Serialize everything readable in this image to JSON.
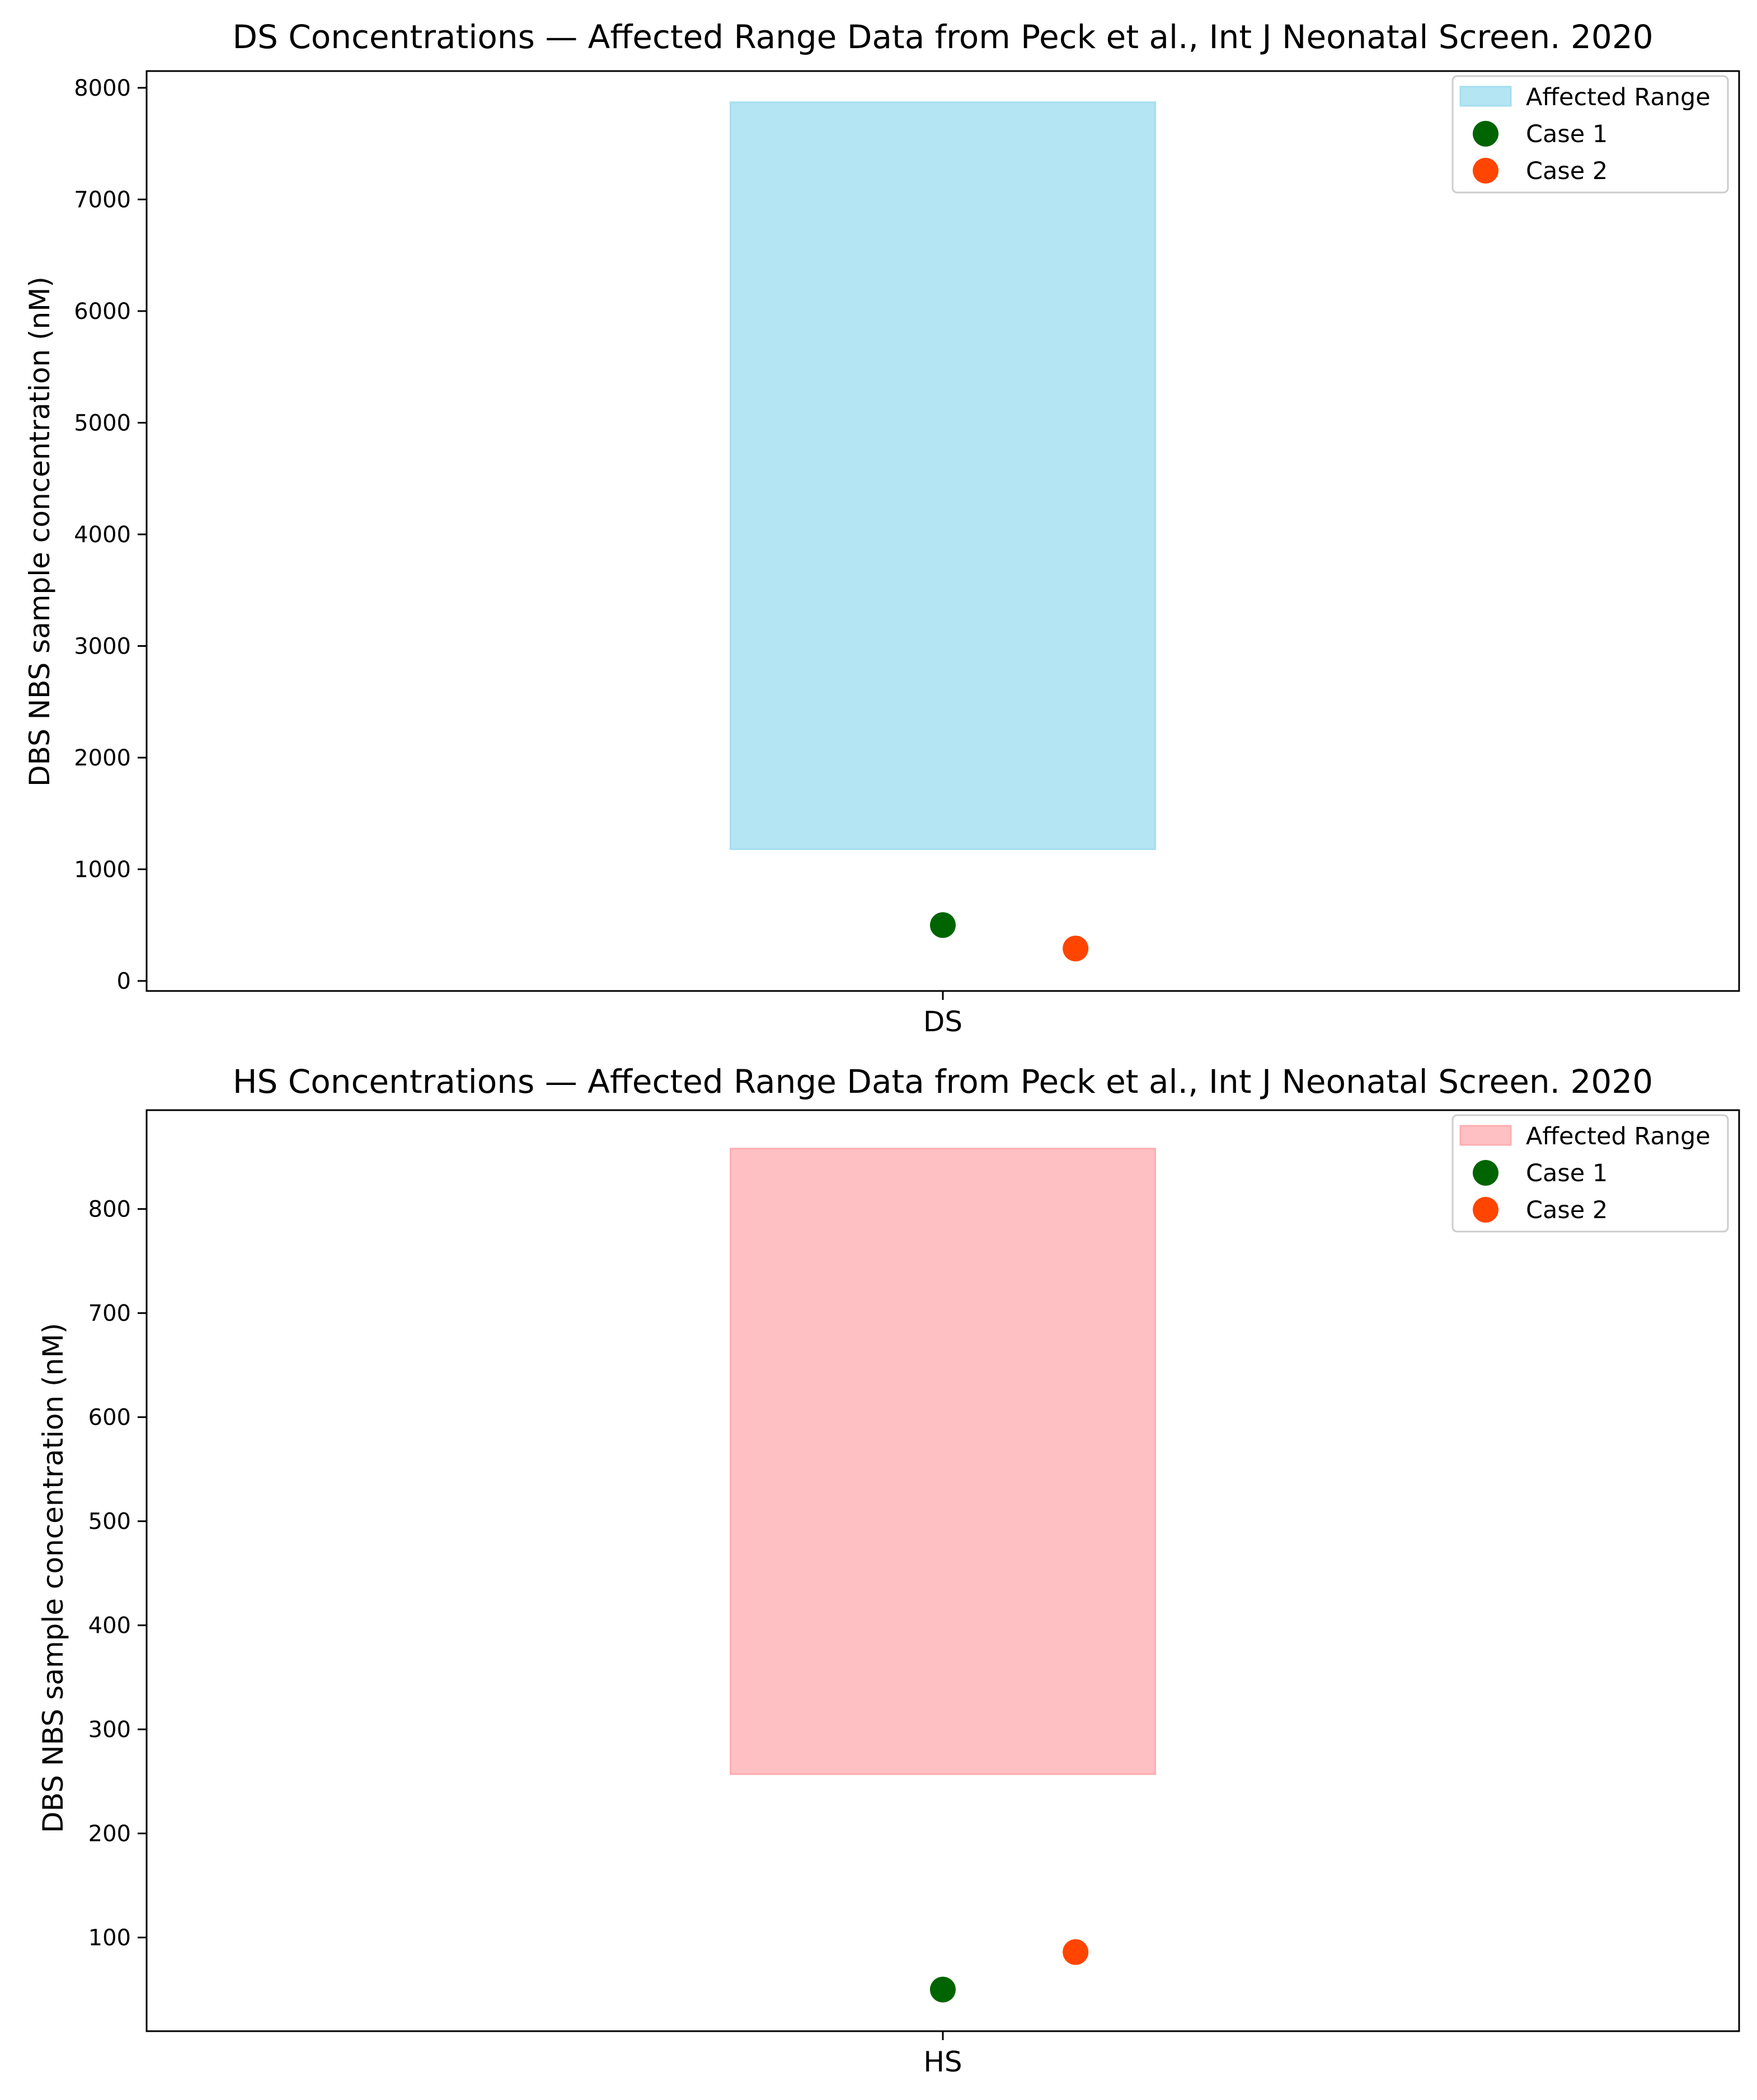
{
  "chart_data": [
    {
      "type": "scatter",
      "title": "DS Concentrations — Affected Range Data from Peck et al., Int J Neonatal Screen. 2020",
      "xlabel": "",
      "ylabel": "DBS NBS sample concentration (nM)",
      "categories": [
        "DS"
      ],
      "ylim": [
        -90,
        8150
      ],
      "yticks": [
        0,
        1000,
        2000,
        3000,
        4000,
        5000,
        6000,
        7000,
        8000
      ],
      "grid": false,
      "legend_position": "top-right",
      "affected_range": {
        "name": "Affected Range",
        "low": 1180,
        "high": 7870,
        "color": "#b3e5f2",
        "edge_color": "#a6def0"
      },
      "series": [
        {
          "name": "Case 1",
          "x": 0.0,
          "y": 500,
          "color": "#006400"
        },
        {
          "name": "Case 2",
          "x": 0.25,
          "y": 290,
          "color": "#ff4500"
        }
      ]
    },
    {
      "type": "scatter",
      "title": "HS Concentrations — Affected Range Data from Peck et al., Int J Neonatal Screen. 2020",
      "xlabel": "",
      "ylabel": "DBS NBS sample concentration (nM)",
      "categories": [
        "HS"
      ],
      "ylim": [
        10,
        895
      ],
      "yticks": [
        100,
        200,
        300,
        400,
        500,
        600,
        700,
        800
      ],
      "grid": false,
      "legend_position": "top-right",
      "affected_range": {
        "name": "Affected Range",
        "low": 257,
        "high": 858,
        "color": "#ffc0c3",
        "edge_color": "#ffadb1"
      },
      "series": [
        {
          "name": "Case 1",
          "x": 0.0,
          "y": 50,
          "color": "#006400"
        },
        {
          "name": "Case 2",
          "x": 0.25,
          "y": 86,
          "color": "#ff4500"
        }
      ]
    }
  ]
}
